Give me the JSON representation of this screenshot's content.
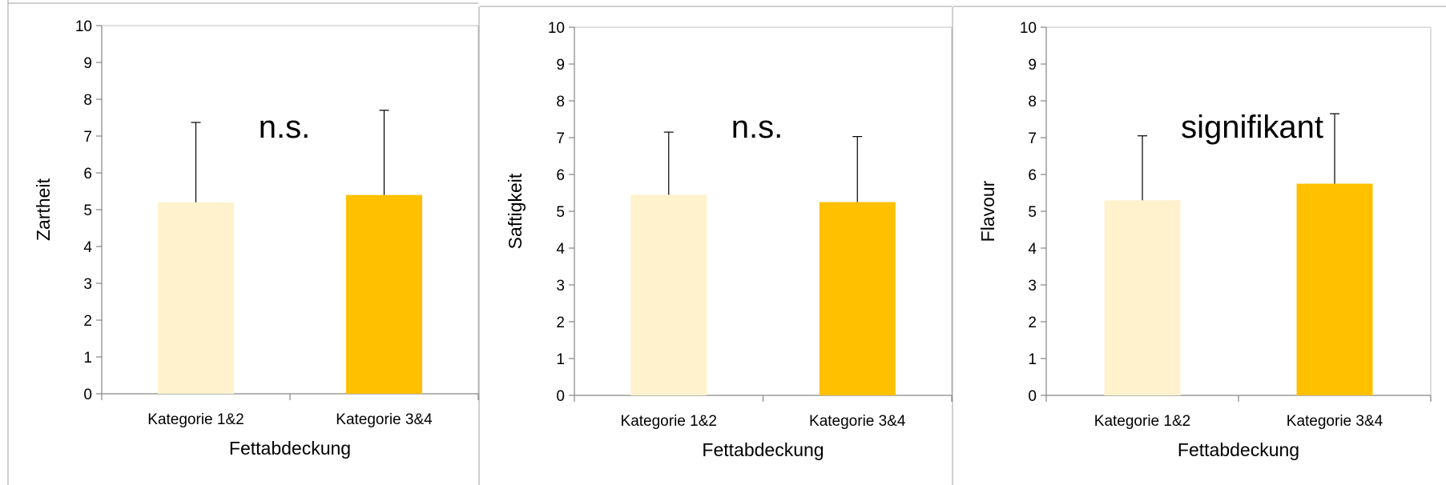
{
  "colors": {
    "light_bar": "#FFF2CC",
    "dark_bar": "#FFC000",
    "axis": "#868686",
    "gridline": "#7f7f7f"
  },
  "chart_data": [
    {
      "type": "bar",
      "categories": [
        "Kategorie 1&2",
        "Kategorie 3&4"
      ],
      "values": [
        5.2,
        5.4
      ],
      "error_plus": [
        2.17,
        2.3
      ],
      "xlabel": "Fettabdeckung",
      "ylabel": "Zartheit",
      "ylim": [
        0,
        10
      ],
      "yticks": [
        "0",
        "1",
        "2",
        "3",
        "4",
        "5",
        "6",
        "7",
        "8",
        "9",
        "10"
      ],
      "annotation": "n.s.",
      "grid": false
    },
    {
      "type": "bar",
      "categories": [
        "Kategorie 1&2",
        "Kategorie 3&4"
      ],
      "values": [
        5.45,
        5.25
      ],
      "error_plus": [
        1.7,
        1.78
      ],
      "xlabel": "Fettabdeckung",
      "ylabel": "Saftigkeit",
      "ylim": [
        0,
        10
      ],
      "yticks": [
        "0",
        "1",
        "2",
        "3",
        "4",
        "5",
        "6",
        "7",
        "8",
        "9",
        "10"
      ],
      "annotation": "n.s.",
      "grid": false
    },
    {
      "type": "bar",
      "categories": [
        "Kategorie 1&2",
        "Kategorie 3&4"
      ],
      "values": [
        5.3,
        5.75
      ],
      "error_plus": [
        1.75,
        1.9
      ],
      "xlabel": "Fettabdeckung",
      "ylabel": "Flavour",
      "ylim": [
        0,
        10
      ],
      "yticks": [
        "0",
        "1",
        "2",
        "3",
        "4",
        "5",
        "6",
        "7",
        "8",
        "9",
        "10"
      ],
      "annotation": "signifikant",
      "grid": false
    }
  ]
}
